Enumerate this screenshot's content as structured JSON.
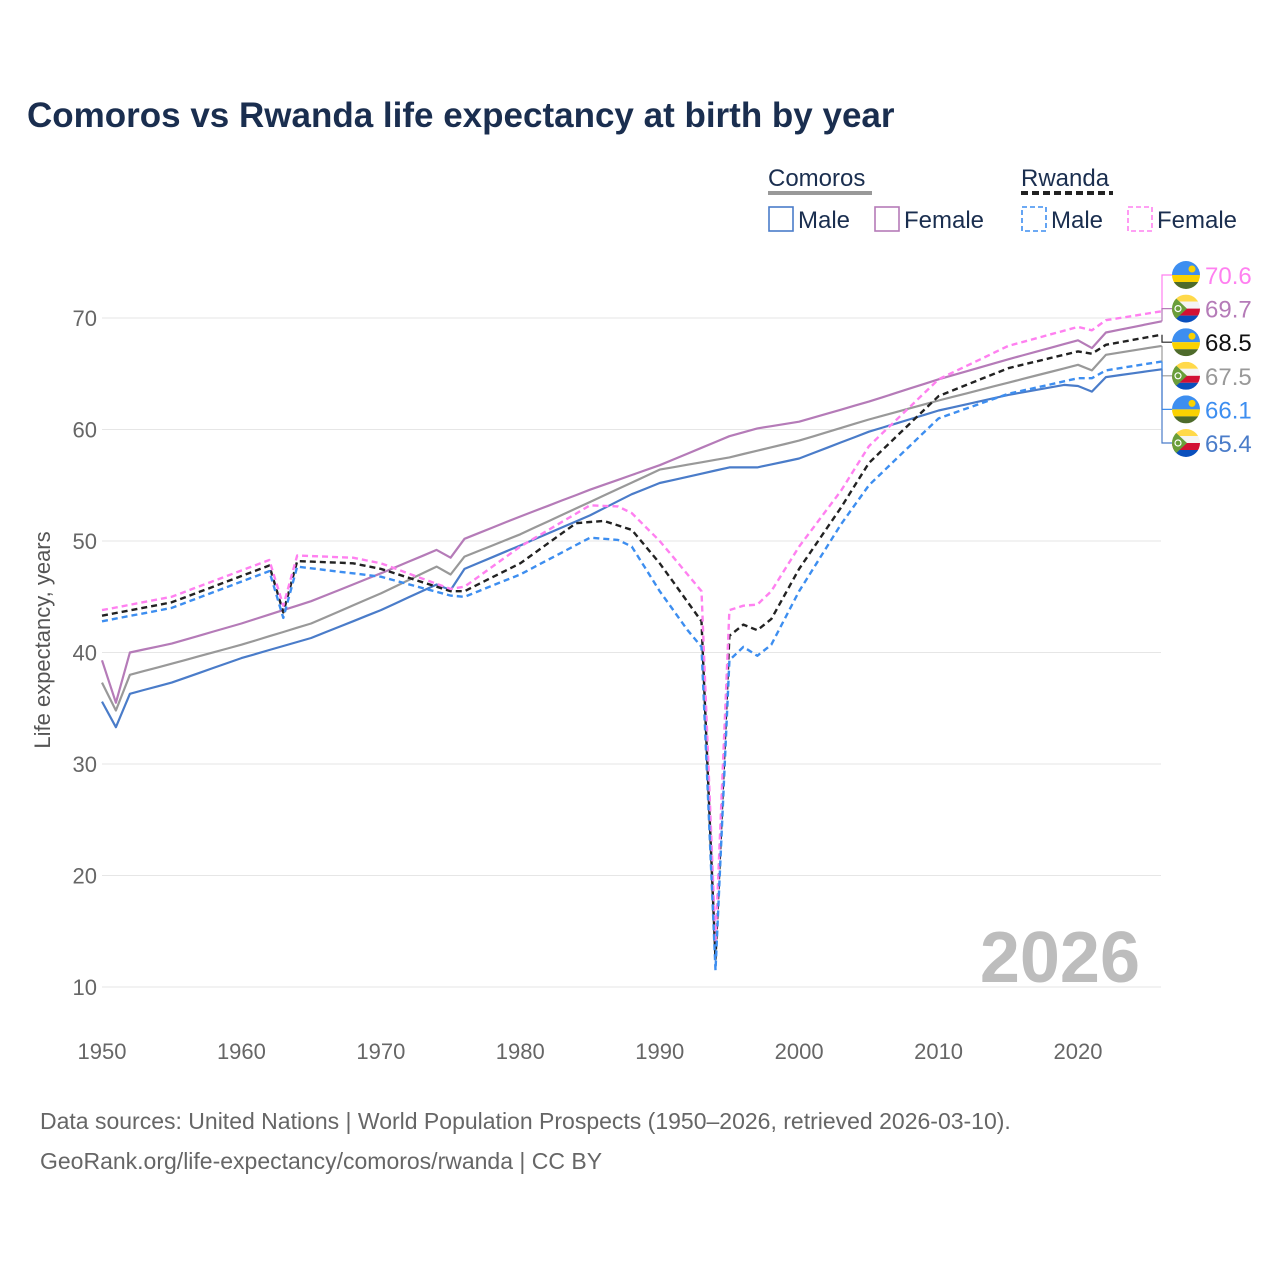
{
  "chart_data": {
    "type": "line",
    "title": "Comoros vs Rwanda life expectancy at birth by year",
    "xlabel": "",
    "ylabel": "Life expectancy, years",
    "xlim": [
      1950,
      2026
    ],
    "ylim": [
      8,
      74
    ],
    "x_ticks": [
      1950,
      1960,
      1970,
      1980,
      1990,
      2000,
      2010,
      2020
    ],
    "y_ticks": [
      10,
      20,
      30,
      40,
      50,
      60,
      70
    ],
    "grid": true,
    "watermark_year": "2026",
    "legend": {
      "groups": [
        {
          "name": "Comoros",
          "entries": [
            "Male",
            "Female"
          ]
        },
        {
          "name": "Rwanda",
          "entries": [
            "Male",
            "Female"
          ]
        }
      ],
      "placement": "top-right"
    },
    "series": [
      {
        "name": "Rwanda Female",
        "country": "Rwanda",
        "color": "#ff80f0",
        "dashed": true,
        "end_label": "70.6",
        "points": [
          [
            1950,
            43.8
          ],
          [
            1955,
            45
          ],
          [
            1962,
            48.3
          ],
          [
            1963,
            44.2
          ],
          [
            1964,
            48.7
          ],
          [
            1968,
            48.5
          ],
          [
            1970,
            48
          ],
          [
            1975,
            45.7
          ],
          [
            1976,
            45.9
          ],
          [
            1980,
            49.5
          ],
          [
            1985,
            53.2
          ],
          [
            1987,
            53.1
          ],
          [
            1988,
            52.5
          ],
          [
            1990,
            50
          ],
          [
            1993,
            45.5
          ],
          [
            1994,
            14
          ],
          [
            1995,
            43.8
          ],
          [
            1996,
            44.2
          ],
          [
            1997,
            44.3
          ],
          [
            1998,
            45.5
          ],
          [
            2000,
            49.5
          ],
          [
            2003,
            54.5
          ],
          [
            2005,
            58.5
          ],
          [
            2010,
            64.5
          ],
          [
            2015,
            67.5
          ],
          [
            2020,
            69.2
          ],
          [
            2021,
            68.9
          ],
          [
            2022,
            69.8
          ],
          [
            2026,
            70.6
          ]
        ]
      },
      {
        "name": "Comoros Female",
        "country": "Comoros",
        "color": "#b57bb8",
        "dashed": false,
        "end_label": "69.7",
        "points": [
          [
            1950,
            39.3
          ],
          [
            1951,
            35.5
          ],
          [
            1952,
            40
          ],
          [
            1955,
            40.8
          ],
          [
            1960,
            42.6
          ],
          [
            1965,
            44.6
          ],
          [
            1970,
            47.1
          ],
          [
            1974,
            49.2
          ],
          [
            1975,
            48.5
          ],
          [
            1976,
            50.2
          ],
          [
            1980,
            52.2
          ],
          [
            1985,
            54.6
          ],
          [
            1990,
            56.8
          ],
          [
            1995,
            59.4
          ],
          [
            1997,
            60.1
          ],
          [
            2000,
            60.7
          ],
          [
            2005,
            62.5
          ],
          [
            2010,
            64.5
          ],
          [
            2015,
            66.3
          ],
          [
            2020,
            68
          ],
          [
            2021,
            67.3
          ],
          [
            2022,
            68.7
          ],
          [
            2026,
            69.7
          ]
        ]
      },
      {
        "name": "Rwanda",
        "country": "Rwanda",
        "color": "#222222",
        "dashed": true,
        "end_label": "68.5",
        "points": [
          [
            1950,
            43.3
          ],
          [
            1955,
            44.5
          ],
          [
            1962,
            47.8
          ],
          [
            1963,
            43.6
          ],
          [
            1964,
            48.2
          ],
          [
            1968,
            48
          ],
          [
            1970,
            47.5
          ],
          [
            1975,
            45.5
          ],
          [
            1976,
            45.5
          ],
          [
            1980,
            48
          ],
          [
            1984,
            51.6
          ],
          [
            1986,
            51.8
          ],
          [
            1988,
            51
          ],
          [
            1990,
            48
          ],
          [
            1993,
            42.8
          ],
          [
            1994,
            12.5
          ],
          [
            1995,
            41.5
          ],
          [
            1996,
            42.5
          ],
          [
            1997,
            42
          ],
          [
            1998,
            43
          ],
          [
            2000,
            47.5
          ],
          [
            2003,
            53
          ],
          [
            2005,
            57
          ],
          [
            2010,
            63
          ],
          [
            2015,
            65.5
          ],
          [
            2020,
            67
          ],
          [
            2021,
            66.8
          ],
          [
            2022,
            67.6
          ],
          [
            2026,
            68.5
          ]
        ]
      },
      {
        "name": "Comoros",
        "country": "Comoros",
        "color": "#999999",
        "dashed": false,
        "end_label": "67.5",
        "points": [
          [
            1950,
            37.3
          ],
          [
            1951,
            34.8
          ],
          [
            1952,
            38
          ],
          [
            1955,
            39
          ],
          [
            1960,
            40.7
          ],
          [
            1965,
            42.6
          ],
          [
            1970,
            45.3
          ],
          [
            1974,
            47.7
          ],
          [
            1975,
            47
          ],
          [
            1976,
            48.6
          ],
          [
            1980,
            50.6
          ],
          [
            1985,
            53.5
          ],
          [
            1990,
            56.4
          ],
          [
            1995,
            57.5
          ],
          [
            2000,
            59
          ],
          [
            2005,
            60.9
          ],
          [
            2010,
            62.6
          ],
          [
            2015,
            64.2
          ],
          [
            2020,
            65.8
          ],
          [
            2021,
            65.3
          ],
          [
            2022,
            66.7
          ],
          [
            2026,
            67.5
          ]
        ]
      },
      {
        "name": "Rwanda Male",
        "country": "Rwanda",
        "color": "#3d8ef0",
        "dashed": true,
        "end_label": "66.1",
        "points": [
          [
            1950,
            42.8
          ],
          [
            1955,
            44
          ],
          [
            1962,
            47.3
          ],
          [
            1963,
            43.1
          ],
          [
            1964,
            47.7
          ],
          [
            1970,
            46.8
          ],
          [
            1975,
            45.1
          ],
          [
            1976,
            45
          ],
          [
            1980,
            47
          ],
          [
            1985,
            50.3
          ],
          [
            1987,
            50.1
          ],
          [
            1988,
            49.5
          ],
          [
            1990,
            45.5
          ],
          [
            1992,
            42
          ],
          [
            1993,
            40.5
          ],
          [
            1994,
            11.5
          ],
          [
            1995,
            39.3
          ],
          [
            1996,
            40.5
          ],
          [
            1997,
            39.7
          ],
          [
            1998,
            40.7
          ],
          [
            2000,
            45.5
          ],
          [
            2003,
            51.5
          ],
          [
            2005,
            55
          ],
          [
            2010,
            61
          ],
          [
            2015,
            63.2
          ],
          [
            2020,
            64.6
          ],
          [
            2021,
            64.6
          ],
          [
            2022,
            65.3
          ],
          [
            2026,
            66.1
          ]
        ]
      },
      {
        "name": "Comoros Male",
        "country": "Comoros",
        "color": "#4a7cc9",
        "dashed": false,
        "end_label": "65.4",
        "points": [
          [
            1950,
            35.6
          ],
          [
            1951,
            33.3
          ],
          [
            1952,
            36.3
          ],
          [
            1955,
            37.3
          ],
          [
            1960,
            39.5
          ],
          [
            1965,
            41.3
          ],
          [
            1970,
            43.8
          ],
          [
            1974,
            46.1
          ],
          [
            1975,
            45.6
          ],
          [
            1976,
            47.5
          ],
          [
            1980,
            49.6
          ],
          [
            1985,
            52.3
          ],
          [
            1988,
            54.2
          ],
          [
            1990,
            55.2
          ],
          [
            1995,
            56.6
          ],
          [
            1997,
            56.6
          ],
          [
            2000,
            57.4
          ],
          [
            2005,
            59.8
          ],
          [
            2010,
            61.7
          ],
          [
            2015,
            63.1
          ],
          [
            2019,
            64
          ],
          [
            2020,
            63.9
          ],
          [
            2021,
            63.4
          ],
          [
            2022,
            64.7
          ],
          [
            2026,
            65.4
          ]
        ]
      }
    ]
  },
  "footer": {
    "line1": "Data sources: United Nations | World Population Prospects (1950–2026, retrieved 2026-03-10).",
    "line2": "GeoRank.org/life-expectancy/comoros/rwanda | CC BY"
  }
}
